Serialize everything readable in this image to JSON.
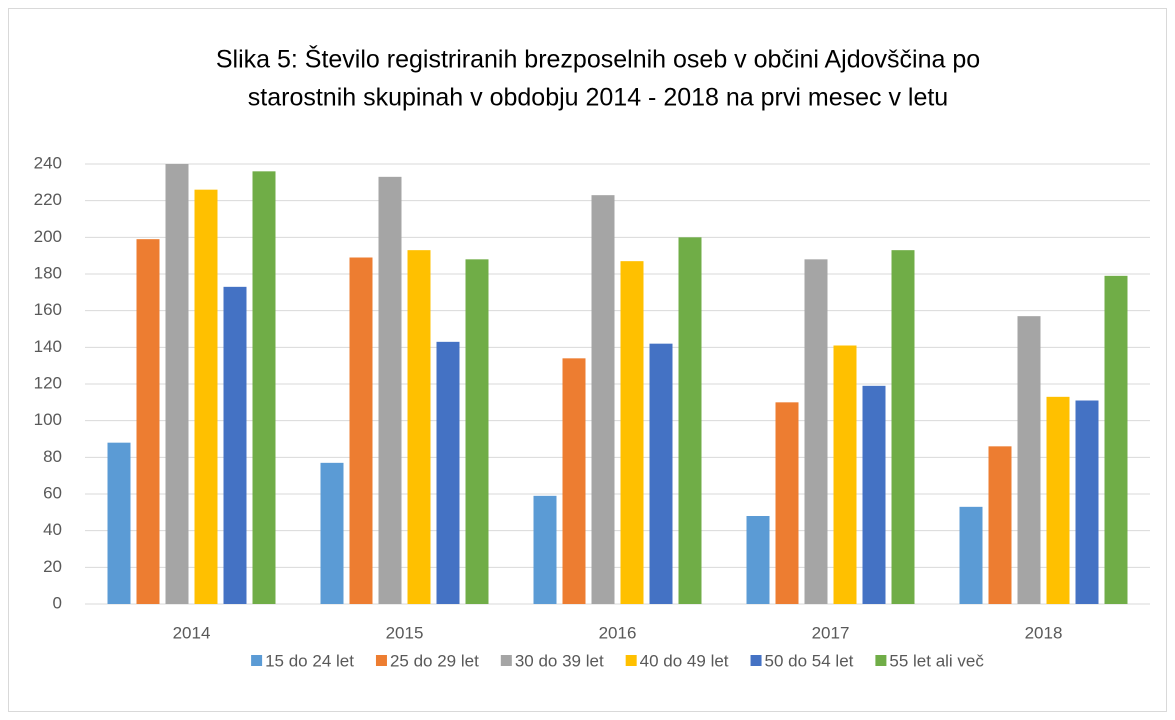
{
  "chart_data": {
    "type": "bar",
    "title": [
      "Slika 5: Število registriranih brezposelnih oseb v občini Ajdovščina po",
      "starostnih skupinah v  obdobju 2014 - 2018 na prvi mesec v letu"
    ],
    "categories": [
      "2014",
      "2015",
      "2016",
      "2017",
      "2018"
    ],
    "series": [
      {
        "name": "15 do 24 let",
        "color": "#5b9bd5",
        "values": [
          88,
          77,
          59,
          48,
          53
        ]
      },
      {
        "name": "25 do 29 let",
        "color": "#ed7d31",
        "values": [
          199,
          189,
          134,
          110,
          86
        ]
      },
      {
        "name": "30 do 39 let",
        "color": "#a5a5a5",
        "values": [
          240,
          233,
          223,
          188,
          157
        ]
      },
      {
        "name": "40 do 49 let",
        "color": "#ffc000",
        "values": [
          226,
          193,
          187,
          141,
          113
        ]
      },
      {
        "name": "50 do 54 let",
        "color": "#4472c4",
        "values": [
          173,
          143,
          142,
          119,
          111
        ]
      },
      {
        "name": "55 let ali več",
        "color": "#70ad47",
        "values": [
          236,
          188,
          200,
          193,
          179
        ]
      }
    ],
    "ylim": [
      0,
      240
    ],
    "yticks": [
      0,
      20,
      40,
      60,
      80,
      100,
      120,
      140,
      160,
      180,
      200,
      220,
      240
    ],
    "grid": true,
    "legend": "bottom"
  }
}
